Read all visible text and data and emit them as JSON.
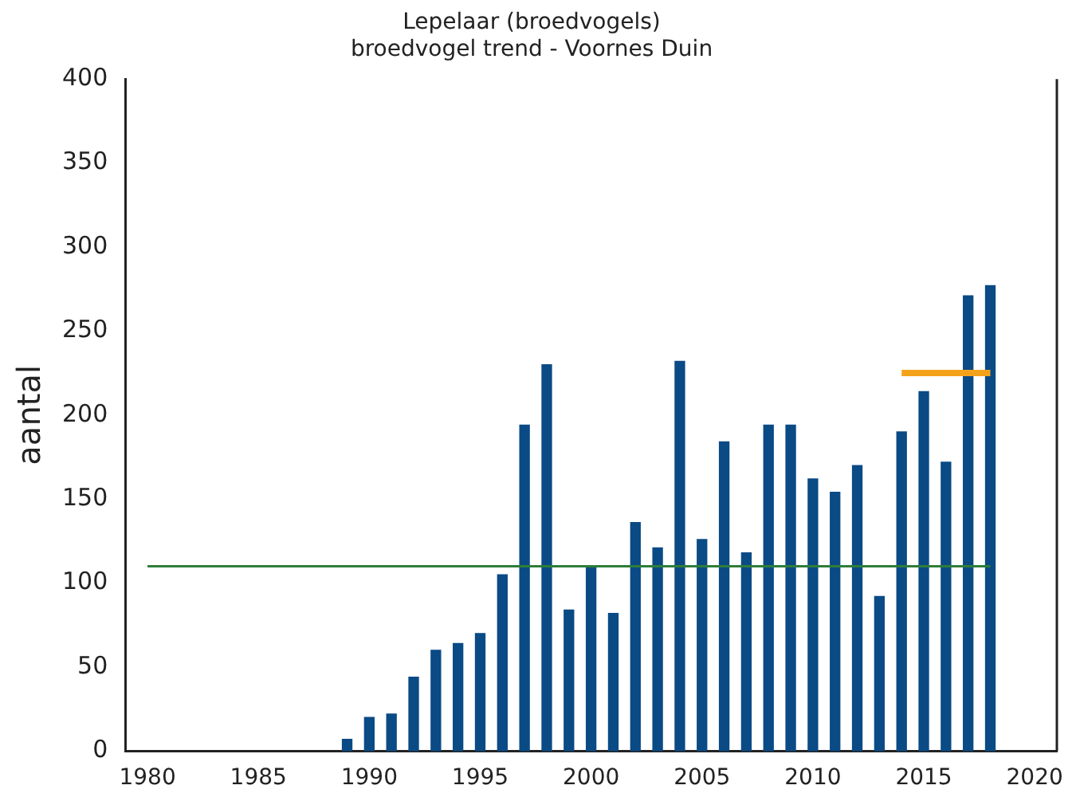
{
  "chart_data": {
    "type": "bar",
    "title": "Lepelaar (broedvogels)",
    "subtitle": "broedvogel trend - Voornes Duin",
    "ylabel": "aantal",
    "x": [
      1989,
      1990,
      1991,
      1992,
      1993,
      1994,
      1995,
      1996,
      1997,
      1998,
      1999,
      2000,
      2001,
      2002,
      2003,
      2004,
      2005,
      2006,
      2007,
      2008,
      2009,
      2010,
      2011,
      2012,
      2013,
      2014,
      2015,
      2016,
      2017,
      2018
    ],
    "series": [
      {
        "color": "#0a4a85",
        "values": [
          7,
          20,
          22,
          44,
          60,
          64,
          70,
          105,
          194,
          230,
          84,
          110,
          82,
          136,
          121,
          232,
          126,
          184,
          118,
          194,
          194,
          162,
          154,
          170,
          92,
          190,
          214,
          172,
          271,
          277
        ]
      },
      {
        "type": "line",
        "color": "#2e7d3a",
        "x": [
          1980,
          2018
        ],
        "values": [
          110,
          110
        ]
      },
      {
        "type": "line",
        "color": "#f5a21b",
        "x": [
          2014,
          2018
        ],
        "values": [
          225,
          225
        ]
      }
    ],
    "xlim": [
      1979,
      2021
    ],
    "xticks": [
      1980,
      1985,
      1990,
      1995,
      2000,
      2005,
      2010,
      2015,
      2020
    ],
    "ylim": [
      0,
      400
    ],
    "yticks": [
      0,
      50,
      100,
      150,
      200,
      250,
      300,
      350,
      400
    ],
    "legend": false
  }
}
